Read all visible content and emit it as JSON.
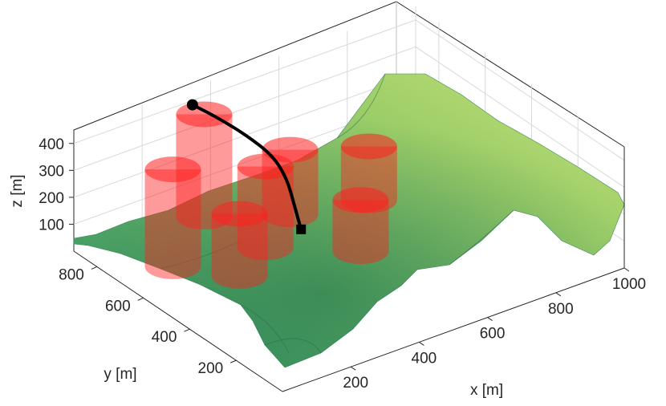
{
  "chart_data": {
    "type": "surface3d",
    "title": "",
    "xlabel": "x [m]",
    "ylabel": "y [m]",
    "zlabel": "z [m]",
    "xlim": [
      0,
      1000
    ],
    "ylim": [
      0,
      900
    ],
    "zlim": [
      0,
      450
    ],
    "xticks": [
      200,
      400,
      600,
      800,
      1000
    ],
    "yticks": [
      200,
      400,
      600,
      800
    ],
    "zticks": [
      100,
      200,
      300,
      400
    ],
    "grid": true,
    "terrain": {
      "colormap": [
        "#2e8f63",
        "#62b26a",
        "#9ccd68",
        "#c8e27a"
      ],
      "description_levels": "elevation-shaded terrain surface"
    },
    "obstacles": {
      "shape": "cylinder",
      "color": "#ff2020",
      "items": [
        {
          "x": 100,
          "y": 620,
          "radius": 55,
          "z_top": 420
        },
        {
          "x": 300,
          "y": 780,
          "radius": 55,
          "z_top": 440
        },
        {
          "x": 200,
          "y": 480,
          "radius": 55,
          "z_top": 290
        },
        {
          "x": 330,
          "y": 560,
          "radius": 55,
          "z_top": 360
        },
        {
          "x": 470,
          "y": 660,
          "radius": 55,
          "z_top": 300
        },
        {
          "x": 660,
          "y": 600,
          "radius": 55,
          "z_top": 260
        },
        {
          "x": 500,
          "y": 400,
          "radius": 55,
          "z_top": 250
        }
      ]
    },
    "path": {
      "color": "#000000",
      "start": {
        "x": 380,
        "y": 480,
        "z": 150,
        "marker": "square"
      },
      "end": {
        "x": 320,
        "y": 860,
        "z": 420,
        "marker": "circle"
      },
      "points": [
        [
          380,
          480,
          150
        ],
        [
          400,
          540,
          200
        ],
        [
          420,
          600,
          250
        ],
        [
          420,
          660,
          300
        ],
        [
          390,
          730,
          350
        ],
        [
          350,
          800,
          395
        ],
        [
          320,
          860,
          420
        ]
      ]
    }
  }
}
